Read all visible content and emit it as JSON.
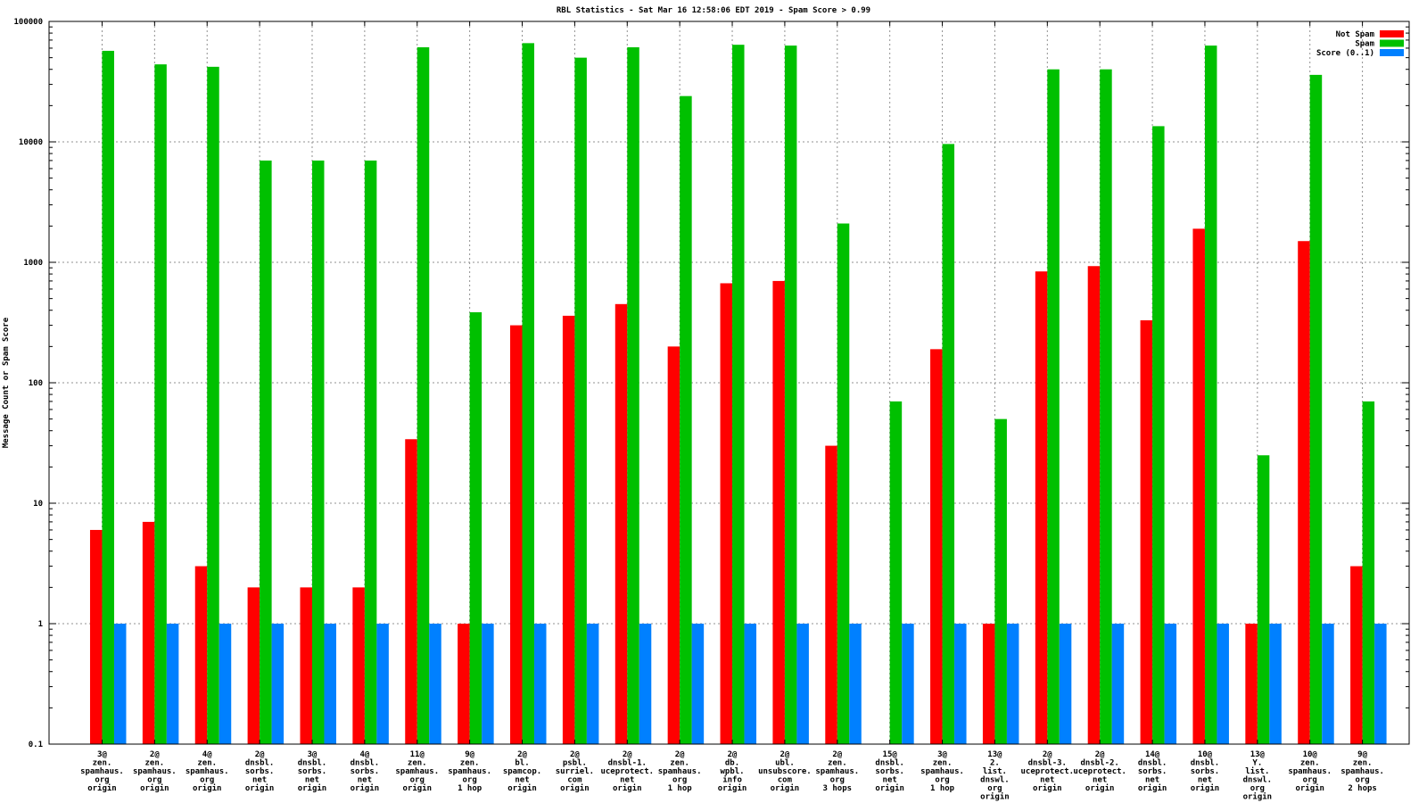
{
  "title": "RBL Statistics - Sat Mar 16 12:58:06 EDT 2019 - Spam Score > 0.99",
  "chart_data": {
    "type": "bar",
    "scale": "log",
    "title": "RBL Statistics - Sat Mar 16 12:58:06 EDT 2019 - Spam Score > 0.99",
    "ylabel": "Message Count or Spam Score",
    "xlabel": "",
    "ylim": [
      0.1,
      100000
    ],
    "grid": true,
    "legend_position": "top-right",
    "y_ticks": [
      100000,
      10000,
      1000,
      100,
      10,
      1,
      0.1
    ],
    "y_tick_labels": [
      "100000",
      "10000",
      "1000",
      "100",
      "10",
      "1",
      "0.1"
    ],
    "colors": {
      "not_spam": "#ff0000",
      "spam": "#00c000",
      "score": "#0080ff",
      "grid": "#909090",
      "border": "#000000"
    },
    "categories": [
      [
        "3@",
        "zen.",
        "spamhaus.",
        "org",
        "origin"
      ],
      [
        "2@",
        "zen.",
        "spamhaus.",
        "org",
        "origin"
      ],
      [
        "4@",
        "zen.",
        "spamhaus.",
        "org",
        "origin"
      ],
      [
        "2@",
        "dnsbl.",
        "sorbs.",
        "net",
        "origin"
      ],
      [
        "3@",
        "dnsbl.",
        "sorbs.",
        "net",
        "origin"
      ],
      [
        "4@",
        "dnsbl.",
        "sorbs.",
        "net",
        "origin"
      ],
      [
        "11@",
        "zen.",
        "spamhaus.",
        "org",
        "origin"
      ],
      [
        "9@",
        "zen.",
        "spamhaus.",
        "org",
        "1 hop"
      ],
      [
        "2@",
        "bl.",
        "spamcop.",
        "net",
        "origin"
      ],
      [
        "2@",
        "psbl.",
        "surriel.",
        "com",
        "origin"
      ],
      [
        "2@",
        "dnsbl-1.",
        "uceprotect.",
        "net",
        "origin"
      ],
      [
        "2@",
        "zen.",
        "spamhaus.",
        "org",
        "1 hop"
      ],
      [
        "2@",
        "db.",
        "wpbl.",
        "info",
        "origin"
      ],
      [
        "2@",
        "ubl.",
        "unsubscore.",
        "com",
        "origin"
      ],
      [
        "2@",
        "zen.",
        "spamhaus.",
        "org",
        "3 hops"
      ],
      [
        "15@",
        "dnsbl.",
        "sorbs.",
        "net",
        "origin"
      ],
      [
        "3@",
        "zen.",
        "spamhaus.",
        "org",
        "1 hop"
      ],
      [
        "13@",
        "2.",
        "list.",
        "dnswl.",
        "org",
        "origin"
      ],
      [
        "2@",
        "dnsbl-3.",
        "uceprotect.",
        "net",
        "origin"
      ],
      [
        "2@",
        "dnsbl-2.",
        "uceprotect.",
        "net",
        "origin"
      ],
      [
        "14@",
        "dnsbl.",
        "sorbs.",
        "net",
        "origin"
      ],
      [
        "10@",
        "dnsbl.",
        "sorbs.",
        "net",
        "origin"
      ],
      [
        "13@",
        "Y.",
        "list.",
        "dnswl.",
        "org",
        "origin"
      ],
      [
        "10@",
        "zen.",
        "spamhaus.",
        "org",
        "origin"
      ],
      [
        "9@",
        "zen.",
        "spamhaus.",
        "org",
        "2 hops"
      ]
    ],
    "series": [
      {
        "name": "Not Spam",
        "color": "#ff0000",
        "values": [
          6,
          7,
          3,
          2,
          2,
          2,
          34,
          1,
          300,
          360,
          450,
          200,
          670,
          700,
          30,
          0,
          190,
          1,
          840,
          930,
          330,
          1900,
          1,
          1500,
          3
        ]
      },
      {
        "name": "Spam",
        "color": "#00c000",
        "values": [
          57000,
          44000,
          42000,
          7000,
          7000,
          7000,
          61000,
          385,
          66000,
          50000,
          61000,
          24000,
          64000,
          63000,
          2100,
          70,
          9600,
          50,
          40000,
          40000,
          13500,
          63000,
          25,
          36000,
          70
        ]
      },
      {
        "name": "Score (0..1)",
        "color": "#0080ff",
        "values": [
          1,
          1,
          1,
          1,
          1,
          1,
          1,
          1,
          1,
          1,
          1,
          1,
          1,
          1,
          1,
          1,
          1,
          1,
          1,
          1,
          1,
          1,
          1,
          1,
          1
        ]
      }
    ],
    "legend": [
      {
        "label": "Not Spam",
        "color": "#ff0000"
      },
      {
        "label": "Spam",
        "color": "#00c000"
      },
      {
        "label": "Score (0..1)",
        "color": "#0080ff"
      }
    ]
  }
}
